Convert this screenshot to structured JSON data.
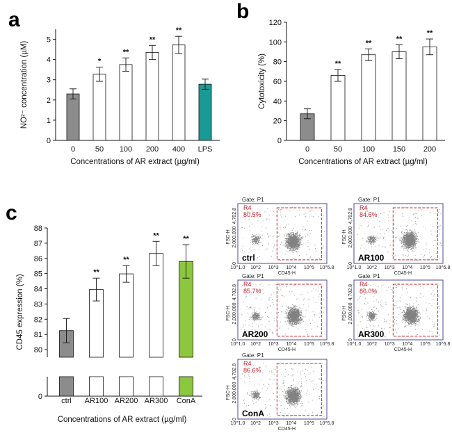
{
  "colors": {
    "control_gray": "#8c8c8c",
    "lps_teal": "#1a9a96",
    "cona_green": "#8dc63f",
    "bar_white": "#ffffff",
    "gate_red": "#d0202a",
    "frame_blue": "#4a4a9a"
  },
  "panels": {
    "a": "a",
    "b": "b",
    "c": "c"
  },
  "chart_data": [
    {
      "id": "a",
      "type": "bar",
      "title": "",
      "xlabel": "Concentrations of AR extract (µg/ml)",
      "ylabel": "NO²⁻ concentration (µM)",
      "ylim": [
        0,
        5.5
      ],
      "yticks": [
        "0",
        "1",
        "2",
        "3",
        "4",
        "5"
      ],
      "categories": [
        "0",
        "50",
        "100",
        "200",
        "400",
        "LPS"
      ],
      "values": [
        2.3,
        3.27,
        3.75,
        4.35,
        4.72,
        2.78
      ],
      "errors": [
        0.25,
        0.35,
        0.33,
        0.35,
        0.43,
        0.25
      ],
      "significance": [
        "",
        "*",
        "**",
        "**",
        "**",
        ""
      ],
      "bar_colors": [
        "control_gray",
        "bar_white",
        "bar_white",
        "bar_white",
        "bar_white",
        "lps_teal"
      ]
    },
    {
      "id": "b",
      "type": "bar",
      "title": "",
      "xlabel": "Concentrations of AR extract (µg/ml)",
      "ylabel": "Cytotoxicity (%)",
      "ylim": [
        0,
        120
      ],
      "yticks": [
        "0",
        "20",
        "40",
        "60",
        "80",
        "100",
        "120"
      ],
      "categories": [
        "0",
        "50",
        "100",
        "150",
        "200"
      ],
      "values": [
        27,
        66,
        87,
        90,
        95
      ],
      "errors": [
        5,
        6,
        6,
        7,
        8
      ],
      "significance": [
        "",
        "**",
        "**",
        "**",
        "**"
      ],
      "bar_colors": [
        "control_gray",
        "bar_white",
        "bar_white",
        "bar_white",
        "bar_white"
      ]
    },
    {
      "id": "c",
      "type": "bar",
      "title": "",
      "xlabel": "Concentrations of AR extract (µg/ml)",
      "ylabel": "CD45 expression (%)",
      "ylim": [
        79.5,
        88
      ],
      "axis_break": true,
      "below_break_tick": "0",
      "yticks": [
        "80",
        "81",
        "82",
        "83",
        "84",
        "85",
        "86",
        "87",
        "88"
      ],
      "categories": [
        "ctrl",
        "AR100",
        "AR200",
        "AR300",
        "ConA"
      ],
      "values": [
        81.25,
        83.95,
        84.98,
        86.32,
        85.8
      ],
      "errors": [
        0.8,
        0.75,
        0.55,
        0.8,
        1.1
      ],
      "significance": [
        "",
        "**",
        "**",
        "**",
        "**"
      ],
      "bar_colors": [
        "control_gray",
        "bar_white",
        "bar_white",
        "bar_white",
        "cona_green"
      ]
    }
  ],
  "flow_plots": [
    {
      "sample": "ctrl",
      "gate": "Gate: P1",
      "region": "R4",
      "percent": "80.5%",
      "cluster": [
        0.62,
        0.58
      ],
      "density": 1.0
    },
    {
      "sample": "AR100",
      "gate": "Gate: P1",
      "region": "R4",
      "percent": "84.6%",
      "cluster": [
        0.62,
        0.56
      ],
      "density": 1.0
    },
    {
      "sample": "AR200",
      "gate": "Gate: P1",
      "region": "R4",
      "percent": "85.7%",
      "cluster": [
        0.63,
        0.55
      ],
      "density": 1.1
    },
    {
      "sample": "AR300",
      "gate": "Gate: P1",
      "region": "R4",
      "percent": "86.0%",
      "cluster": [
        0.64,
        0.54
      ],
      "density": 1.15
    },
    {
      "sample": "ConA",
      "gate": "Gate: P1",
      "region": "R4",
      "percent": "86.6%",
      "cluster": [
        0.62,
        0.56
      ],
      "density": 1.0
    }
  ],
  "flow_axes": {
    "y_label": "FSC-H",
    "x_label": "CD45-H",
    "y_top": "4,702.8",
    "y_mid": "2,000,000",
    "y_bottom": "0",
    "x_ticks": [
      "10^1.0",
      "10^2",
      "10^3",
      "10^4",
      "10^5",
      "10^5.8"
    ]
  }
}
